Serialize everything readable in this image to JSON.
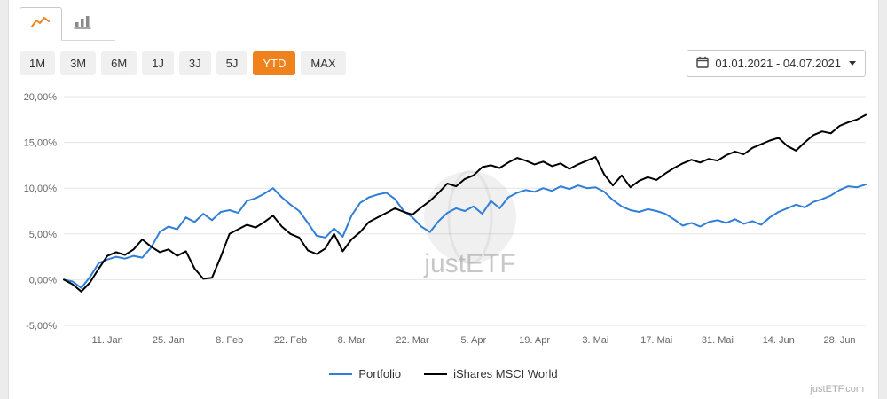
{
  "icons": {
    "tab_line": "line-chart-icon",
    "tab_bar": "bar-chart-icon",
    "calendar": "calendar-icon",
    "caret": "caret-down-icon"
  },
  "toolbar": {
    "ranges": [
      "1M",
      "3M",
      "6M",
      "1J",
      "3J",
      "5J",
      "YTD",
      "MAX"
    ],
    "active_range": "YTD",
    "date_range": "01.01.2021 - 04.07.2021"
  },
  "colors": {
    "accent_orange": "#f0821e",
    "portfolio_blue": "#2f7ed8",
    "benchmark_black": "#000000",
    "grid": "#e6e6e6",
    "axis_text": "#666666"
  },
  "watermark": "justETF",
  "footer": {
    "brand": "justETF.com"
  },
  "chart_data": {
    "type": "line",
    "title": "",
    "xlabel": "",
    "ylabel": "",
    "ylim": [
      -5,
      20
    ],
    "grid": true,
    "legend_position": "bottom",
    "x_unit": "days since 01.01.2021",
    "x": [
      0,
      2,
      4,
      6,
      8,
      10,
      12,
      14,
      16,
      18,
      20,
      22,
      24,
      26,
      28,
      30,
      32,
      34,
      36,
      38,
      40,
      42,
      44,
      46,
      48,
      50,
      52,
      54,
      56,
      58,
      60,
      62,
      64,
      66,
      68,
      70,
      72,
      74,
      76,
      78,
      80,
      82,
      84,
      86,
      88,
      90,
      92,
      94,
      96,
      98,
      100,
      102,
      104,
      106,
      108,
      110,
      112,
      114,
      116,
      118,
      120,
      122,
      124,
      126,
      128,
      130,
      132,
      134,
      136,
      138,
      140,
      142,
      144,
      146,
      148,
      150,
      152,
      154,
      156,
      158,
      160,
      162,
      164,
      166,
      168,
      170,
      172,
      174,
      176,
      178,
      180,
      182,
      184
    ],
    "x_ticks": [
      {
        "day": 10,
        "label": "11. Jan"
      },
      {
        "day": 24,
        "label": "25. Jan"
      },
      {
        "day": 38,
        "label": "8. Feb"
      },
      {
        "day": 52,
        "label": "22. Feb"
      },
      {
        "day": 66,
        "label": "8. Mar"
      },
      {
        "day": 80,
        "label": "22. Mar"
      },
      {
        "day": 94,
        "label": "5. Apr"
      },
      {
        "day": 108,
        "label": "19. Apr"
      },
      {
        "day": 122,
        "label": "3. Mai"
      },
      {
        "day": 136,
        "label": "17. Mai"
      },
      {
        "day": 150,
        "label": "31. Mai"
      },
      {
        "day": 164,
        "label": "14. Jun"
      },
      {
        "day": 178,
        "label": "28. Jun"
      }
    ],
    "y_ticks": [
      {
        "v": 20,
        "label": "20,00%"
      },
      {
        "v": 15,
        "label": "15,00%"
      },
      {
        "v": 10,
        "label": "10,00%"
      },
      {
        "v": 5,
        "label": "5,00%"
      },
      {
        "v": 0,
        "label": "0,00%"
      },
      {
        "v": -5,
        "label": "-5,00%"
      }
    ],
    "series": [
      {
        "name": "Portfolio",
        "color": "#2f7ed8",
        "width": 2,
        "values": [
          0.0,
          -0.2,
          -0.9,
          0.3,
          1.8,
          2.2,
          2.5,
          2.3,
          2.6,
          2.4,
          3.5,
          5.2,
          5.8,
          5.5,
          6.8,
          6.3,
          7.2,
          6.5,
          7.4,
          7.6,
          7.3,
          8.6,
          8.9,
          9.4,
          10.0,
          9.0,
          8.2,
          7.5,
          6.2,
          4.8,
          4.6,
          5.6,
          4.7,
          7.0,
          8.4,
          9.0,
          9.3,
          9.5,
          8.8,
          7.5,
          6.8,
          5.8,
          5.2,
          6.4,
          7.3,
          7.8,
          7.5,
          8.0,
          7.2,
          8.6,
          7.8,
          9.0,
          9.5,
          9.8,
          9.6,
          10.0,
          9.7,
          10.2,
          9.9,
          10.3,
          10.0,
          10.1,
          9.6,
          8.7,
          8.0,
          7.6,
          7.4,
          7.7,
          7.5,
          7.2,
          6.6,
          5.9,
          6.2,
          5.8,
          6.3,
          6.5,
          6.2,
          6.6,
          6.1,
          6.4,
          6.0,
          6.8,
          7.4,
          7.8,
          8.2,
          7.9,
          8.5,
          8.8,
          9.2,
          9.8,
          10.2,
          10.1,
          10.4
        ]
      },
      {
        "name": "iShares MSCI World",
        "color": "#000000",
        "width": 2,
        "values": [
          0.0,
          -0.5,
          -1.3,
          -0.3,
          1.2,
          2.6,
          3.0,
          2.7,
          3.3,
          4.4,
          3.6,
          3.0,
          3.3,
          2.6,
          3.1,
          1.2,
          0.1,
          0.2,
          2.5,
          5.0,
          5.5,
          6.0,
          5.7,
          6.3,
          7.0,
          5.8,
          5.0,
          4.6,
          3.2,
          2.8,
          3.4,
          5.0,
          3.1,
          4.4,
          5.2,
          6.3,
          6.8,
          7.3,
          7.8,
          7.4,
          7.1,
          7.9,
          8.6,
          9.5,
          10.5,
          10.2,
          11.0,
          11.4,
          12.3,
          12.5,
          12.2,
          12.8,
          13.3,
          13.0,
          12.6,
          12.9,
          12.4,
          12.7,
          12.1,
          12.6,
          13.0,
          13.4,
          11.5,
          10.3,
          11.4,
          10.1,
          10.8,
          11.2,
          10.9,
          11.6,
          12.2,
          12.7,
          13.1,
          12.8,
          13.2,
          13.0,
          13.6,
          14.0,
          13.7,
          14.4,
          14.8,
          15.2,
          15.5,
          14.6,
          14.1,
          15.0,
          15.8,
          16.2,
          16.0,
          16.8,
          17.2,
          17.5,
          18.0
        ]
      }
    ]
  }
}
